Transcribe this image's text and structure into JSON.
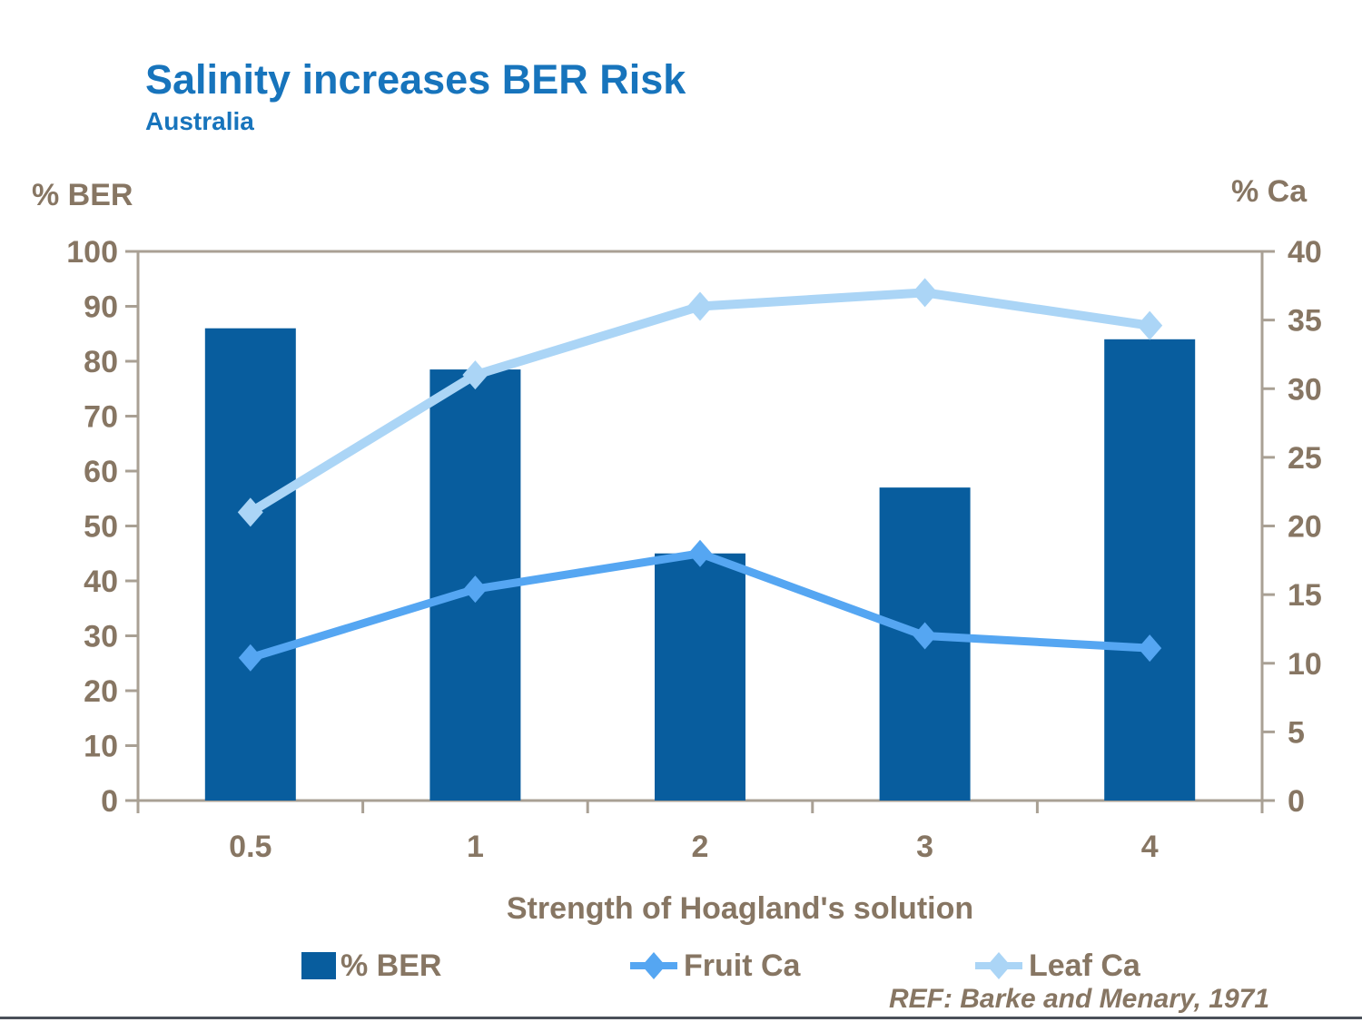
{
  "slide": {
    "title": "Salinity increases BER Risk",
    "subtitle": "Australia",
    "reference": "REF: Barke and Menary, 1971"
  },
  "chart_data": {
    "type": "combo-bar-line",
    "title": "Salinity increases BER Risk",
    "subtitle": "Australia",
    "categories": [
      "0.5",
      "1",
      "2",
      "3",
      "4"
    ],
    "xlabel": "Strength of Hoagland's solution",
    "left_axis": {
      "label": "% BER",
      "min": 0,
      "max": 100,
      "step": 10
    },
    "right_axis": {
      "label": "% Ca",
      "min": 0,
      "max": 40,
      "step": 5
    },
    "series": [
      {
        "name": "% BER",
        "type": "bar",
        "axis": "left",
        "values": [
          86,
          78.5,
          45,
          57,
          84
        ]
      },
      {
        "name": "Fruit Ca",
        "type": "line",
        "axis": "right",
        "values": [
          10.4,
          15.4,
          18,
          12,
          11.1
        ]
      },
      {
        "name": "Leaf Ca",
        "type": "line",
        "axis": "right",
        "values": [
          21,
          31,
          36,
          37,
          34.6
        ]
      }
    ],
    "legend_position": "bottom",
    "grid": false,
    "annotation": "REF: Barke and Menary, 1971"
  },
  "colors": {
    "bar": "#085D9E",
    "fruit_line": "#55A6F2",
    "leaf_line": "#ABD5F6",
    "axis_text": "#877663",
    "plot_border": "#A9A094",
    "title_blue": "#1774BC",
    "footer_rule": "#4A5059"
  }
}
